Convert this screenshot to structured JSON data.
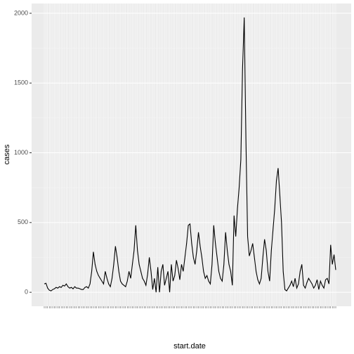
{
  "chart_data": {
    "type": "line",
    "x_label": "start.date",
    "y_label": "cases",
    "color": "#000000",
    "grid": true,
    "ylim": [
      -100,
      2070
    ],
    "yticks": [
      0,
      500,
      1000,
      1500,
      2000
    ],
    "values": [
      60,
      65,
      30,
      15,
      10,
      20,
      25,
      35,
      30,
      40,
      35,
      50,
      45,
      60,
      40,
      30,
      35,
      25,
      40,
      30,
      30,
      25,
      20,
      20,
      35,
      40,
      30,
      60,
      150,
      290,
      200,
      150,
      120,
      100,
      80,
      60,
      150,
      100,
      60,
      40,
      100,
      200,
      330,
      250,
      150,
      80,
      60,
      50,
      40,
      80,
      150,
      100,
      200,
      300,
      480,
      300,
      200,
      150,
      100,
      80,
      50,
      130,
      250,
      150,
      20,
      100,
      0,
      180,
      0,
      150,
      200,
      50,
      100,
      150,
      0,
      200,
      80,
      120,
      230,
      170,
      90,
      200,
      150,
      250,
      350,
      480,
      490,
      350,
      250,
      200,
      300,
      430,
      330,
      250,
      150,
      100,
      120,
      80,
      60,
      200,
      480,
      350,
      250,
      150,
      100,
      80,
      200,
      430,
      300,
      200,
      150,
      50,
      550,
      400,
      600,
      750,
      950,
      1600,
      1970,
      1100,
      400,
      260,
      300,
      350,
      250,
      150,
      90,
      60,
      100,
      250,
      380,
      300,
      150,
      80,
      300,
      450,
      600,
      800,
      890,
      700,
      500,
      150,
      20,
      10,
      30,
      50,
      80,
      40,
      100,
      30,
      60,
      150,
      200,
      50,
      30,
      70,
      100,
      80,
      60,
      30,
      50,
      90,
      20,
      80,
      50,
      30,
      90,
      100,
      60,
      340,
      200,
      270,
      160
    ]
  }
}
